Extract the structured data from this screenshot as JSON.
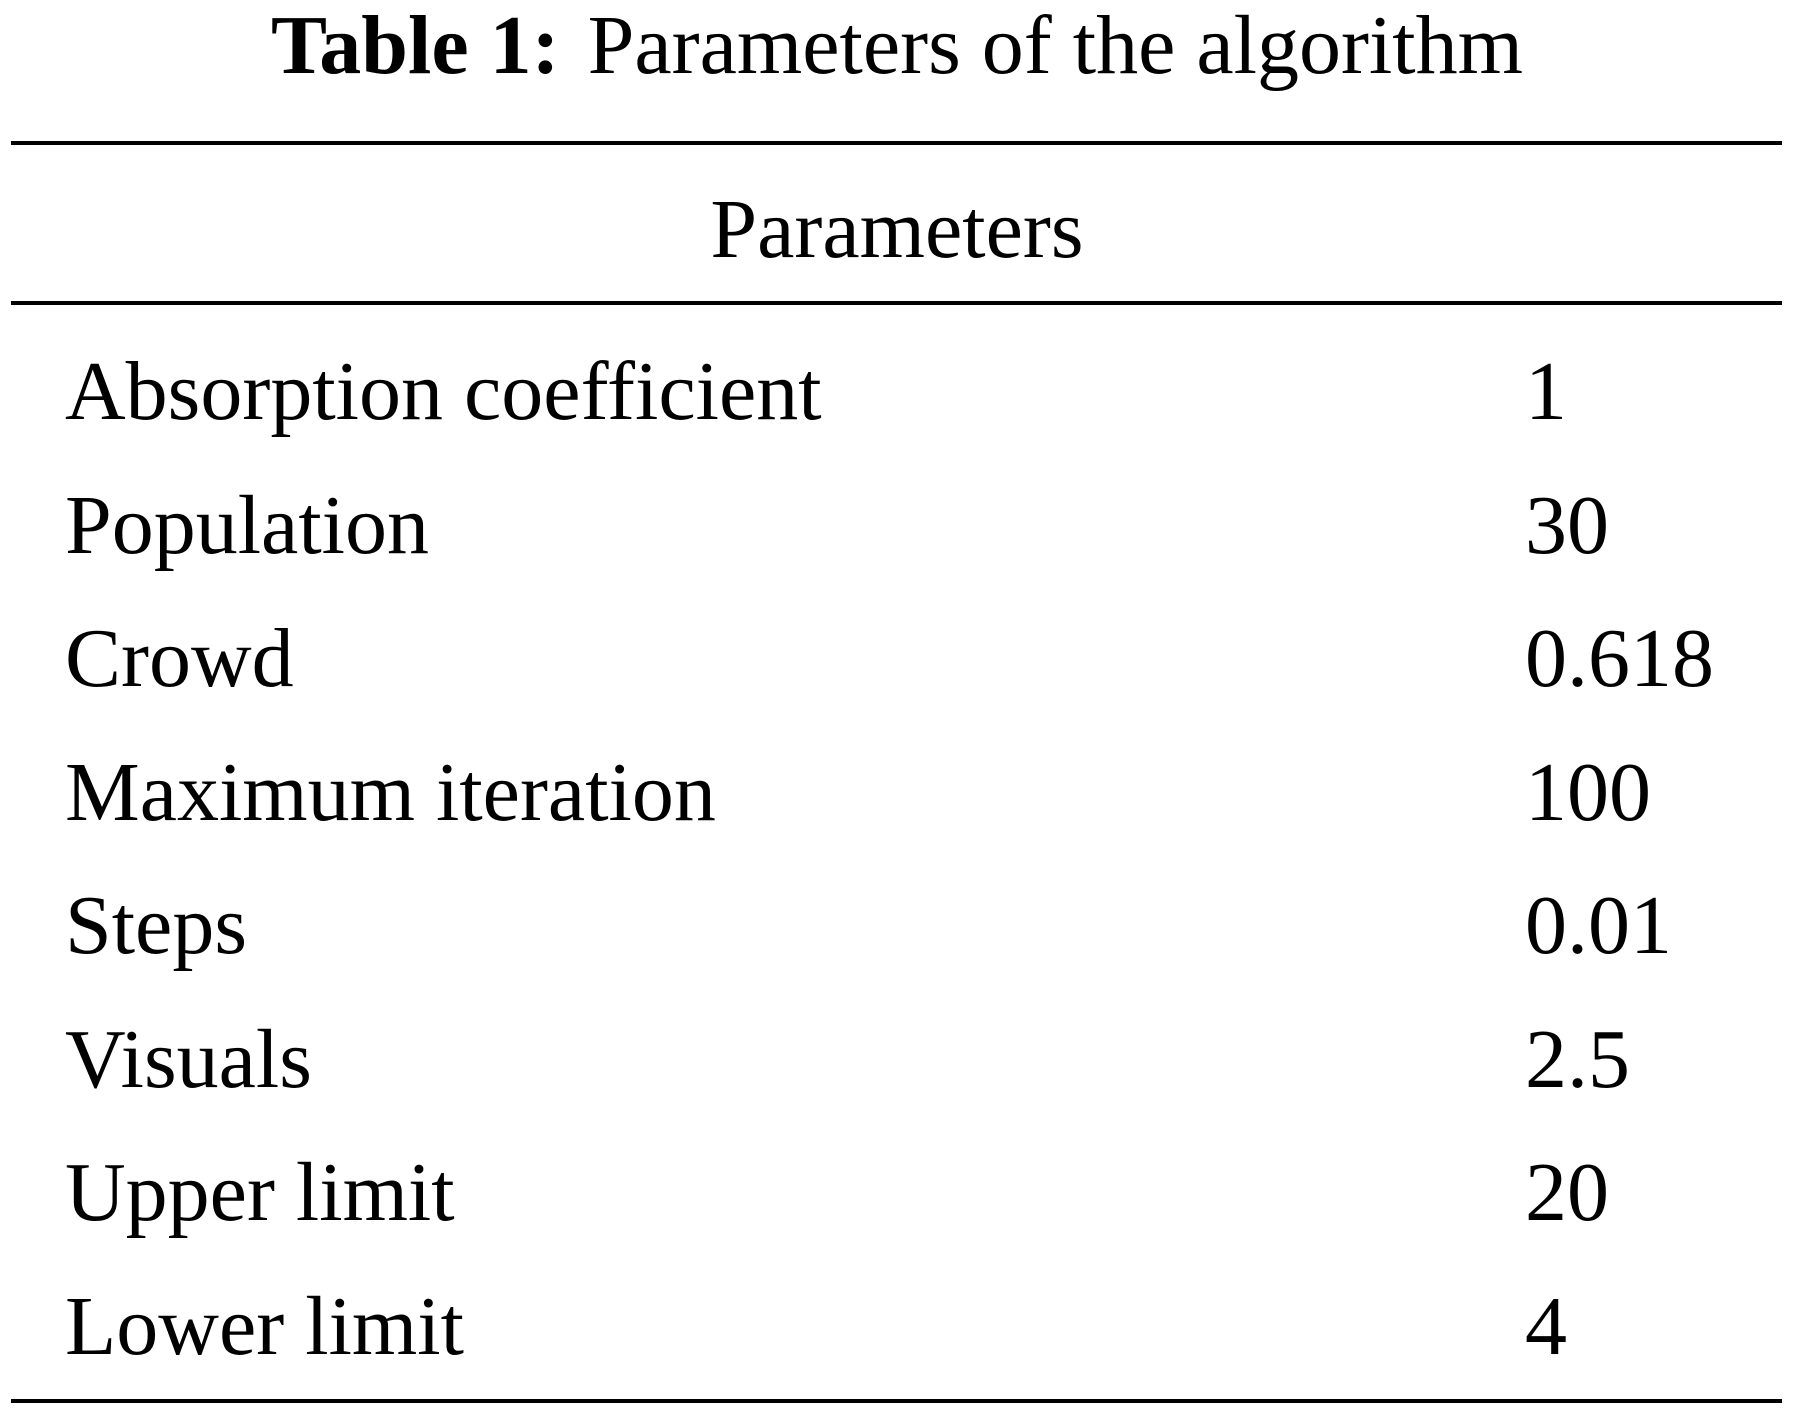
{
  "caption": {
    "label": "Table 1:",
    "text": "Parameters of the algorithm"
  },
  "table": {
    "header": "Parameters",
    "rows": [
      [
        "Absorption coefficient",
        1
      ],
      [
        "Population",
        30
      ],
      [
        "Crowd",
        0.618
      ],
      [
        "Maximum iteration",
        100
      ],
      [
        "Steps",
        0.01
      ],
      [
        "Visuals",
        2.5
      ],
      [
        "Upper limit",
        20
      ],
      [
        "Lower limit",
        4
      ]
    ]
  }
}
